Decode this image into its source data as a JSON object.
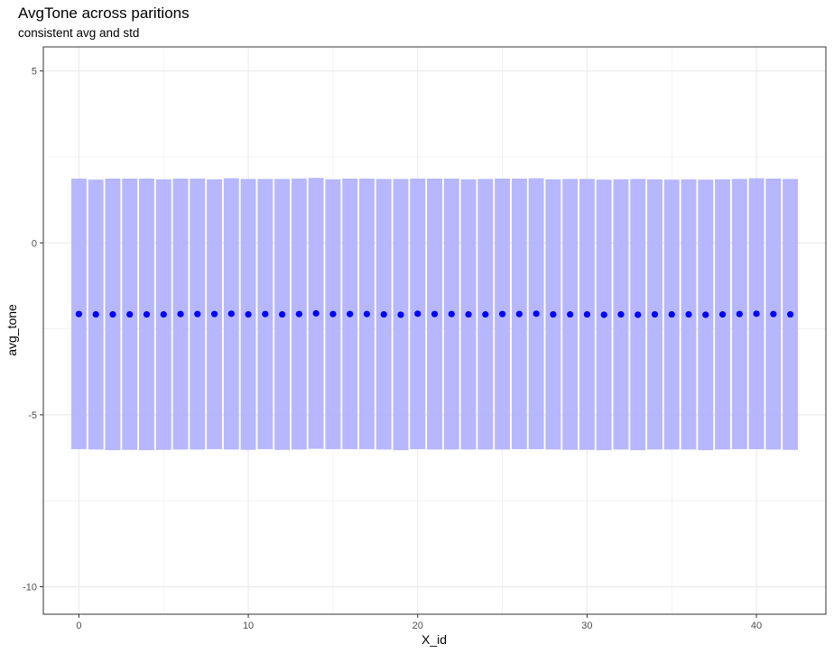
{
  "chart_data": {
    "type": "scatter",
    "title": "AvgTone across paritions",
    "subtitle": "consistent avg and std",
    "xlabel": "X_id",
    "ylabel": "avg_tone",
    "xlim": [
      -2.1,
      44.1
    ],
    "ylim": [
      -10.8,
      5.7
    ],
    "x_ticks": [
      0,
      10,
      20,
      30,
      40
    ],
    "y_ticks": [
      5,
      0,
      -5,
      -10
    ],
    "grid": true,
    "legend": "none",
    "colors": {
      "point": "#0000ff",
      "band": "#b3b3ff",
      "grid": "#ebebeb",
      "border": "#333333"
    },
    "band_width": 0.9,
    "x": [
      0,
      1,
      2,
      3,
      4,
      5,
      6,
      7,
      8,
      9,
      10,
      11,
      12,
      13,
      14,
      15,
      16,
      17,
      18,
      19,
      20,
      21,
      22,
      23,
      24,
      25,
      26,
      27,
      28,
      29,
      30,
      31,
      32,
      33,
      34,
      35,
      36,
      37,
      38,
      39,
      40,
      41,
      42
    ],
    "y": [
      -2.07,
      -2.08,
      -2.08,
      -2.08,
      -2.08,
      -2.08,
      -2.07,
      -2.07,
      -2.07,
      -2.06,
      -2.08,
      -2.07,
      -2.08,
      -2.07,
      -2.05,
      -2.07,
      -2.07,
      -2.07,
      -2.08,
      -2.09,
      -2.06,
      -2.07,
      -2.07,
      -2.08,
      -2.08,
      -2.07,
      -2.07,
      -2.06,
      -2.08,
      -2.08,
      -2.08,
      -2.09,
      -2.08,
      -2.09,
      -2.08,
      -2.08,
      -2.08,
      -2.09,
      -2.08,
      -2.07,
      -2.06,
      -2.07,
      -2.08
    ],
    "y_upper": [
      1.87,
      1.84,
      1.87,
      1.87,
      1.87,
      1.85,
      1.87,
      1.87,
      1.85,
      1.88,
      1.86,
      1.86,
      1.86,
      1.87,
      1.89,
      1.85,
      1.87,
      1.87,
      1.86,
      1.86,
      1.87,
      1.87,
      1.87,
      1.85,
      1.86,
      1.87,
      1.87,
      1.88,
      1.85,
      1.86,
      1.86,
      1.84,
      1.85,
      1.86,
      1.85,
      1.84,
      1.85,
      1.84,
      1.85,
      1.86,
      1.88,
      1.87,
      1.86
    ],
    "y_lower": [
      -6.0,
      -6.01,
      -6.03,
      -6.02,
      -6.03,
      -6.02,
      -6.01,
      -6.01,
      -6.0,
      -6.01,
      -6.02,
      -6.0,
      -6.02,
      -6.01,
      -5.99,
      -6.0,
      -6.0,
      -6.0,
      -6.01,
      -6.03,
      -6.0,
      -6.01,
      -6.01,
      -6.01,
      -6.01,
      -6.01,
      -6.0,
      -6.0,
      -6.01,
      -6.02,
      -6.02,
      -6.03,
      -6.01,
      -6.03,
      -6.01,
      -6.01,
      -6.01,
      -6.03,
      -6.01,
      -6.0,
      -6.0,
      -6.01,
      -6.02
    ]
  }
}
